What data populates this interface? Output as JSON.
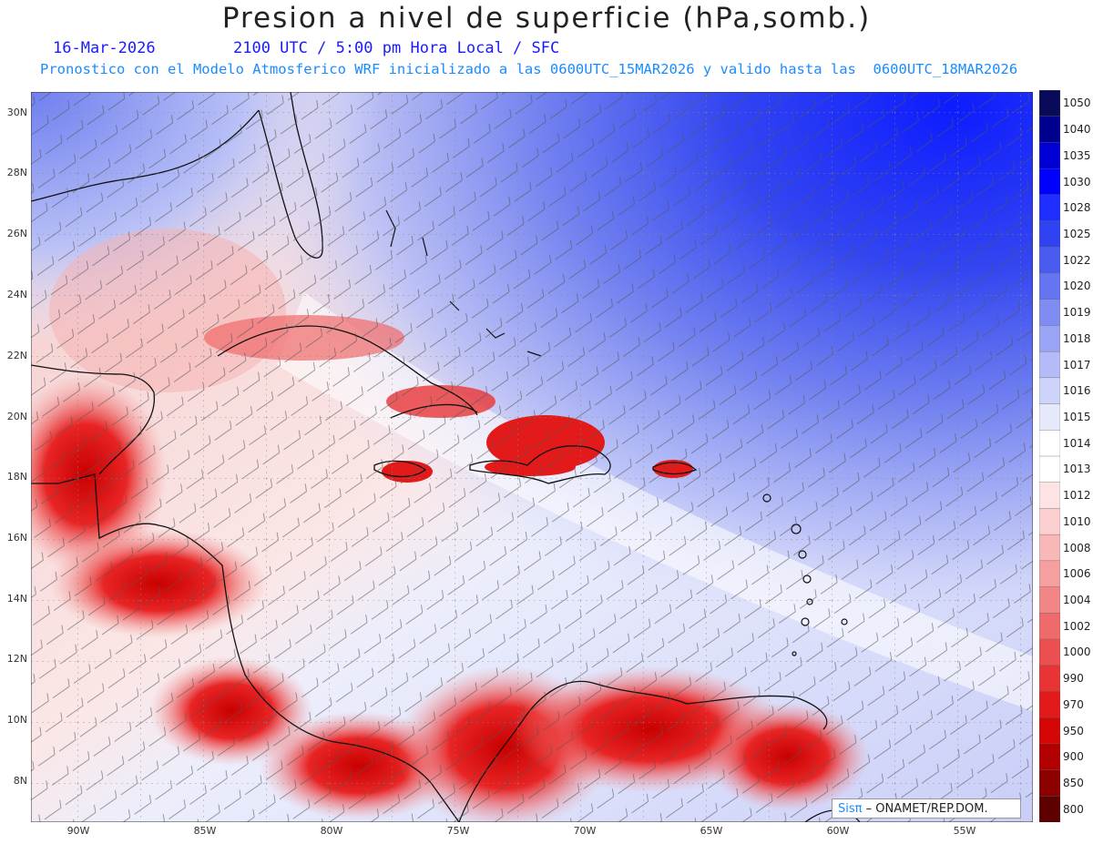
{
  "header": {
    "title": "Presion a nivel de superficie (hPa,somb.)",
    "date": "16-Mar-2026",
    "time_info": "2100 UTC / 5:00 pm Hora Local / SFC",
    "model_info": "Pronostico con el Modelo Atmosferico WRF inicializado a las 0600UTC_15MAR2026 y valido hasta las  0600UTC_18MAR2026"
  },
  "axes": {
    "lat_labels": [
      "30N",
      "28N",
      "26N",
      "24N",
      "22N",
      "20N",
      "18N",
      "16N",
      "14N",
      "12N",
      "10N",
      "8N"
    ],
    "lon_labels": [
      "90W",
      "85W",
      "80W",
      "75W",
      "70W",
      "65W",
      "60W",
      "55W"
    ]
  },
  "colorbar": {
    "levels": [
      "1050",
      "1040",
      "1035",
      "1030",
      "1028",
      "1025",
      "1022",
      "1020",
      "1019",
      "1018",
      "1017",
      "1016",
      "1015",
      "1014",
      "1013",
      "1012",
      "1010",
      "1008",
      "1006",
      "1004",
      "1002",
      "1000",
      "990",
      "970",
      "950",
      "900",
      "850",
      "800"
    ],
    "colors": [
      "#0a0a5a",
      "#00008f",
      "#0000d6",
      "#0000ff",
      "#1e2eff",
      "#2f43f2",
      "#4a5cf0",
      "#6574f0",
      "#7f8cf2",
      "#9aa4f5",
      "#b4bbf8",
      "#ced3fa",
      "#e6e8fc",
      "#ffffff",
      "#ffffff",
      "#fde3e3",
      "#fbcfcf",
      "#f8b8b8",
      "#f59f9f",
      "#f28585",
      "#ef6a6a",
      "#eb4f4f",
      "#e83434",
      "#e31a1a",
      "#d40606",
      "#b30000",
      "#8c0000",
      "#5c0000"
    ]
  },
  "credit": {
    "brand": "Sisπ",
    "text": "– ONAMET/REP.DOM."
  }
}
